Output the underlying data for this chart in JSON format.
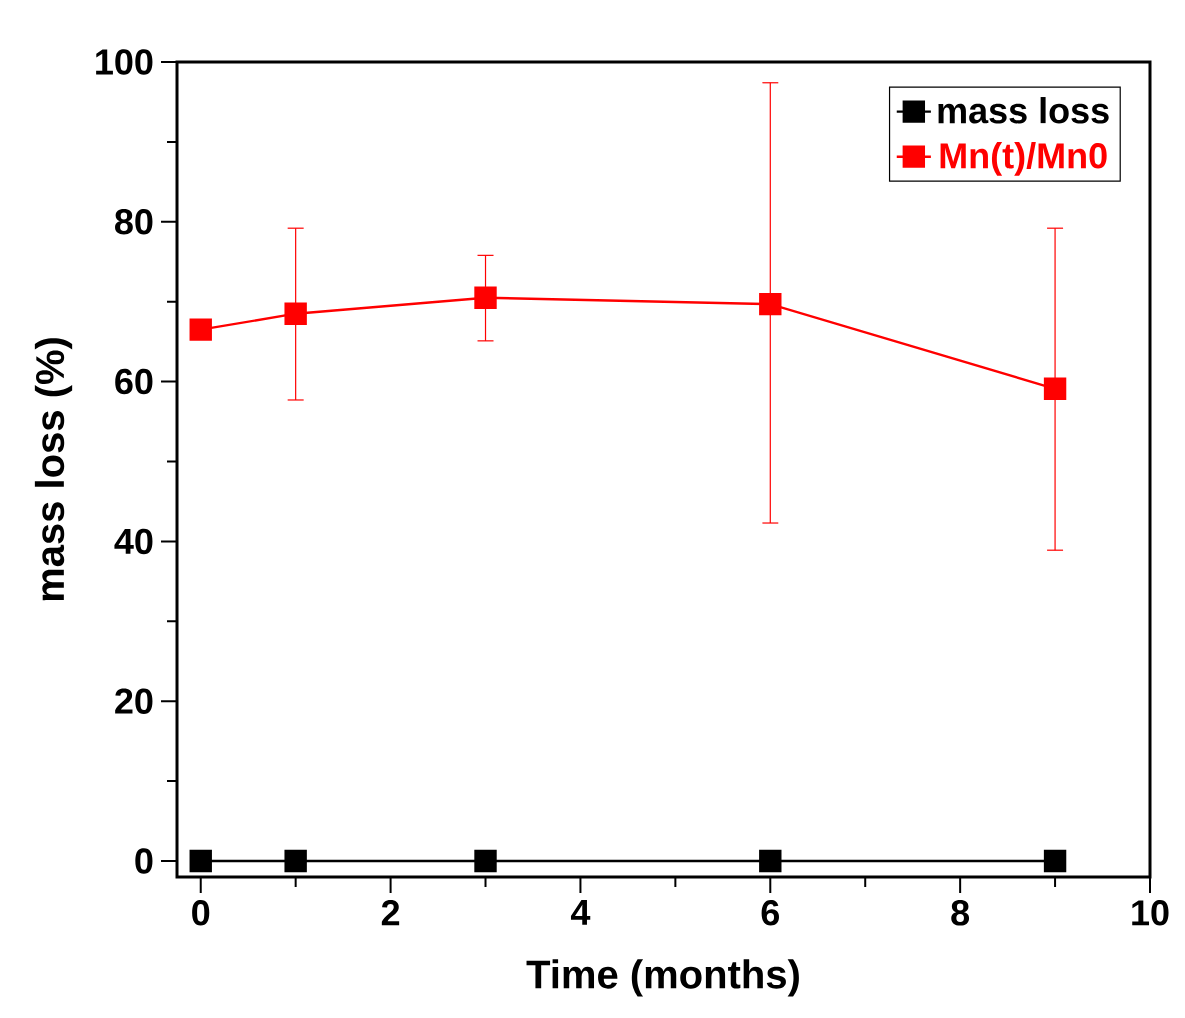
{
  "chart_data": {
    "type": "line",
    "xlabel": "Time (months)",
    "ylabel": "mass loss (%)",
    "xlim": [
      -0.25,
      10
    ],
    "ylim": [
      -2,
      100
    ],
    "xticks": [
      0,
      2,
      4,
      6,
      8,
      10
    ],
    "yticks": [
      0,
      20,
      40,
      60,
      80,
      100
    ],
    "marker": "square",
    "line_style": "solid",
    "grid": false,
    "legend": "top right",
    "series": [
      {
        "name": "mass loss",
        "color": "#000000",
        "x": [
          0,
          1,
          3,
          6,
          9
        ],
        "values": [
          0,
          0,
          0,
          0,
          0
        ]
      },
      {
        "name": "Mn(t)/Mn0",
        "color": "#ff0000",
        "x": [
          0,
          1,
          3,
          6,
          9
        ],
        "values": [
          66.5,
          68.5,
          70.5,
          69.7,
          59.1
        ],
        "errors": [
          null,
          [
            57.7,
            79.2
          ],
          [
            65.1,
            75.8
          ],
          [
            42.3,
            97.4
          ],
          [
            38.9,
            79.2
          ]
        ]
      }
    ]
  }
}
